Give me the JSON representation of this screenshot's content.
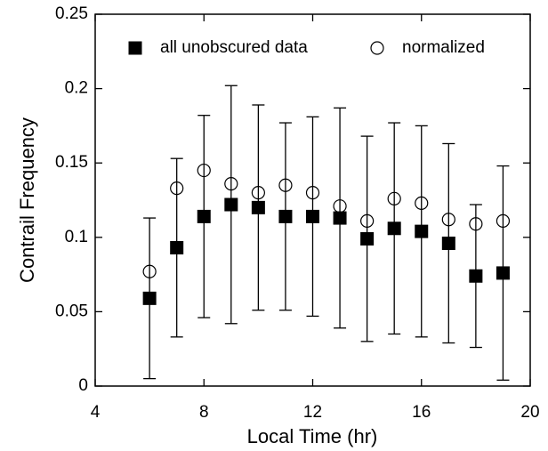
{
  "chart_data": {
    "type": "scatter",
    "x_label": "Local Time (hr)",
    "y_label": "Contrail Frequency",
    "x": [
      6,
      7,
      8,
      9,
      10,
      11,
      12,
      13,
      14,
      15,
      16,
      17,
      18,
      19
    ],
    "series": [
      {
        "name": "all unobscured data",
        "marker": "square",
        "color": "#000000",
        "values": [
          0.059,
          0.093,
          0.114,
          0.122,
          0.12,
          0.114,
          0.114,
          0.113,
          0.099,
          0.106,
          0.104,
          0.096,
          0.074,
          0.076
        ],
        "errors": [
          0.054,
          0.06,
          0.068,
          0.08,
          0.069,
          0.063,
          0.067,
          0.074,
          0.069,
          0.071,
          0.071,
          0.067,
          0.048,
          0.072
        ]
      },
      {
        "name": "normalized",
        "marker": "circle-open",
        "color": "#000000",
        "values": [
          0.077,
          0.133,
          0.145,
          0.136,
          0.13,
          0.135,
          0.13,
          0.121,
          0.111,
          0.126,
          0.123,
          0.112,
          0.109,
          0.111
        ]
      }
    ],
    "xlim": [
      4,
      20
    ],
    "xticks": [
      4,
      8,
      12,
      16,
      20
    ],
    "ylim": [
      0,
      0.25
    ],
    "yticks": [
      0,
      0.05,
      0.1,
      0.15,
      0.2,
      0.25
    ],
    "legend": "top"
  }
}
